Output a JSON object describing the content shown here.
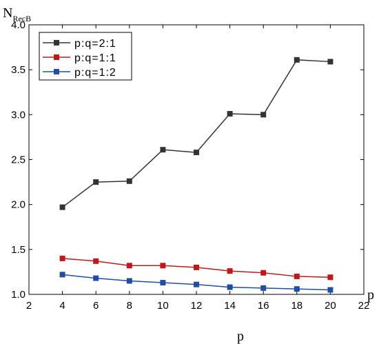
{
  "chart_data": {
    "type": "line",
    "xlabel": "p",
    "xlabel_end": "p",
    "ylabel_main": "N",
    "ylabel_sub": "RecB",
    "xlim": [
      2,
      22
    ],
    "ylim": [
      1.0,
      4.0
    ],
    "xticks": [
      "2",
      "4",
      "6",
      "8",
      "10",
      "12",
      "14",
      "16",
      "18",
      "20",
      "22"
    ],
    "yticks": [
      "1.0",
      "1.5",
      "2.0",
      "2.5",
      "3.0",
      "3.5",
      "4.0"
    ],
    "x": [
      4,
      6,
      8,
      10,
      12,
      14,
      16,
      18,
      20
    ],
    "legend_position": "top-left",
    "grid": false,
    "series": [
      {
        "name": "p:q=2:1",
        "color": "#333333",
        "marker": "square",
        "values": [
          1.97,
          2.25,
          2.26,
          2.61,
          2.58,
          3.01,
          3.0,
          3.61,
          3.59
        ]
      },
      {
        "name": "p:q=1:1",
        "color": "#c0181a",
        "marker": "square",
        "values": [
          1.4,
          1.37,
          1.32,
          1.32,
          1.3,
          1.26,
          1.24,
          1.2,
          1.19
        ]
      },
      {
        "name": "p:q=1:2",
        "color": "#1f4ea3",
        "marker": "square",
        "values": [
          1.22,
          1.18,
          1.15,
          1.13,
          1.11,
          1.08,
          1.07,
          1.06,
          1.05
        ]
      }
    ]
  }
}
